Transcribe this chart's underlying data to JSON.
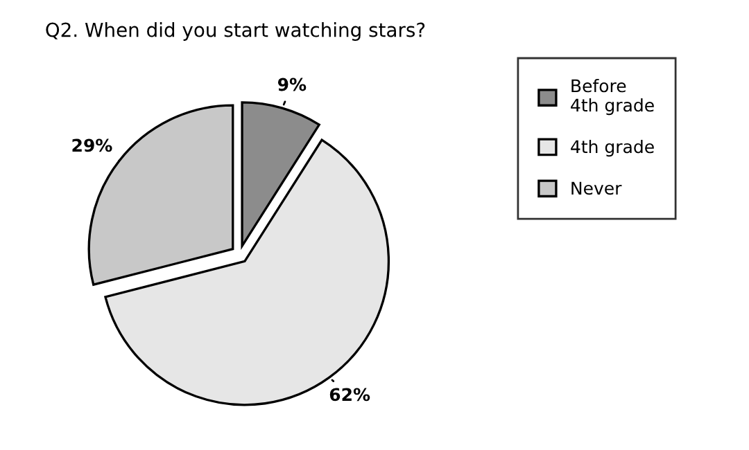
{
  "chart_data": {
    "type": "pie",
    "title": "Q2. When did you start watching stars?",
    "categories": [
      "Before\n4th grade",
      "4th grade",
      "Never"
    ],
    "values": [
      9,
      62,
      29
    ],
    "value_labels": [
      "9%",
      "62%",
      "29%"
    ],
    "colors": [
      "#8c8c8c",
      "#e6e6e6",
      "#c8c8c8"
    ],
    "legend": "right"
  }
}
